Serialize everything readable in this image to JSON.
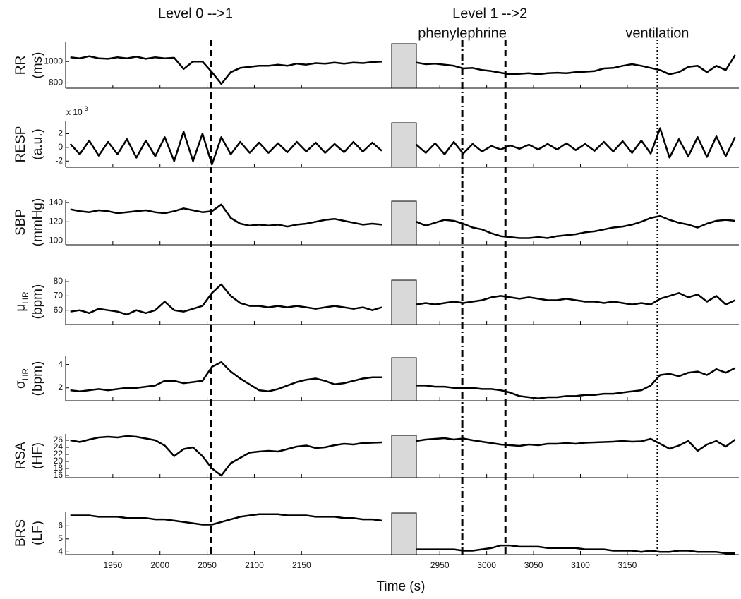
{
  "chart_data": {
    "type": "line",
    "xlabel": "Time (s)",
    "color": "#000000",
    "segments": [
      {
        "xlim": [
          1900,
          2244
        ],
        "xticks": [
          1950,
          2000,
          2050,
          2100,
          2150
        ]
      },
      {
        "xlim": [
          2925,
          3269
        ],
        "xticks": [
          2950,
          3000,
          3050,
          3100,
          3150
        ]
      }
    ],
    "x": [
      [
        1905,
        1915,
        1925,
        1935,
        1945,
        1955,
        1965,
        1975,
        1985,
        1995,
        2005,
        2015,
        2025,
        2035,
        2045,
        2055,
        2065,
        2075,
        2085,
        2095,
        2105,
        2115,
        2125,
        2135,
        2145,
        2155,
        2165,
        2175,
        2185,
        2195,
        2205,
        2215,
        2225,
        2235
      ],
      [
        2925,
        2935,
        2945,
        2955,
        2965,
        2975,
        2985,
        2995,
        3005,
        3015,
        3025,
        3035,
        3045,
        3055,
        3065,
        3075,
        3085,
        3095,
        3105,
        3115,
        3125,
        3135,
        3145,
        3155,
        3165,
        3175,
        3185,
        3195,
        3205,
        3215,
        3225,
        3235,
        3245,
        3255,
        3265
      ]
    ],
    "events": [
      {
        "x": 2054,
        "style": "dashed",
        "label": "Level 0 -->1"
      },
      {
        "x": 2974,
        "style": "dashdot",
        "label": "phenylephrine"
      },
      {
        "x": 3020,
        "style": "dashed",
        "label": "Level 1 -->2"
      },
      {
        "x": 3182,
        "style": "dotted",
        "label": "ventilation"
      }
    ],
    "panels": [
      {
        "ylabel": "RR",
        "unit": "(ms)",
        "ylim": [
          750,
          1180
        ],
        "yticks": [
          800,
          1000
        ],
        "values": [
          [
            1040,
            1030,
            1050,
            1030,
            1025,
            1040,
            1030,
            1045,
            1025,
            1040,
            1030,
            1035,
            930,
            1000,
            1000,
            900,
            790,
            900,
            940,
            950,
            960,
            960,
            970,
            960,
            980,
            970,
            985,
            980,
            990,
            980,
            990,
            985,
            995,
            1000
          ],
          [
            990,
            975,
            980,
            970,
            960,
            935,
            940,
            920,
            910,
            895,
            880,
            885,
            890,
            880,
            890,
            895,
            890,
            900,
            905,
            910,
            935,
            940,
            960,
            975,
            960,
            940,
            920,
            880,
            900,
            950,
            960,
            900,
            960,
            920,
            1060
          ]
        ]
      },
      {
        "ylabel": "RESP",
        "unit": "(a.u.)",
        "multiplier": "x 10",
        "multiplier_exp": "-3",
        "ylim": [
          -2.9,
          3.8
        ],
        "yticks": [
          -2,
          0,
          2
        ],
        "values": [
          [
            0.5,
            -1,
            1,
            -1.2,
            0.8,
            -1,
            1.2,
            -1.5,
            1,
            -1.3,
            1.5,
            -2,
            2.3,
            -2,
            2,
            -2.5,
            1.5,
            -1,
            0.8,
            -0.8,
            0.7,
            -0.8,
            0.6,
            -0.7,
            0.8,
            -0.6,
            0.7,
            -0.8,
            0.5,
            -0.7,
            0.8,
            -0.6,
            0.7,
            -0.5
          ],
          [
            0.4,
            -0.8,
            0.6,
            -1,
            0.8,
            -0.9,
            0.5,
            -0.6,
            0.2,
            -0.3,
            0.3,
            -0.2,
            0.4,
            -0.3,
            0.5,
            -0.3,
            0.6,
            -0.4,
            0.5,
            -0.5,
            0.8,
            -0.6,
            0.9,
            -0.8,
            1,
            -0.9,
            2.8,
            -1.5,
            1.2,
            -1.3,
            1.5,
            -1.4,
            1.6,
            -1.3,
            1.5
          ]
        ]
      },
      {
        "ylabel": "SBP",
        "unit": "(mmHg)",
        "ylim": [
          96,
          143
        ],
        "yticks": [
          100,
          120,
          140
        ],
        "values": [
          [
            133,
            131,
            130,
            132,
            131,
            129,
            130,
            131,
            132,
            130,
            129,
            131,
            134,
            132,
            130,
            131,
            138,
            124,
            118,
            116,
            117,
            116,
            117,
            115,
            117,
            118,
            120,
            122,
            123,
            121,
            119,
            117,
            118,
            117
          ],
          [
            120,
            116,
            119,
            122,
            121,
            118,
            114,
            112,
            108,
            105,
            104,
            103,
            103,
            104,
            103,
            105,
            106,
            107,
            109,
            110,
            112,
            114,
            115,
            117,
            120,
            124,
            126,
            122,
            119,
            117,
            114,
            118,
            121,
            122,
            121
          ]
        ]
      },
      {
        "ylabel": "μ",
        "ylabel_sub": "HR",
        "unit": "(bpm)",
        "ylim": [
          50,
          82
        ],
        "yticks": [
          60,
          70,
          80
        ],
        "values": [
          [
            59,
            60,
            58,
            61,
            60,
            59,
            57,
            60,
            58,
            60,
            66,
            60,
            59,
            61,
            63,
            72,
            78,
            70,
            65,
            63,
            63,
            62,
            63,
            62,
            63,
            62,
            61,
            62,
            63,
            62,
            61,
            62,
            60,
            62
          ],
          [
            64,
            65,
            64,
            65,
            66,
            65,
            66,
            67,
            69,
            70,
            69,
            68,
            69,
            68,
            67,
            67,
            68,
            67,
            66,
            66,
            65,
            66,
            65,
            64,
            65,
            64,
            68,
            70,
            72,
            69,
            71,
            66,
            70,
            64,
            67
          ]
        ]
      },
      {
        "ylabel": "σ",
        "ylabel_sub": "HR",
        "unit": "(bpm)",
        "ylim": [
          0.9,
          4.7
        ],
        "yticks": [
          2,
          4
        ],
        "values": [
          [
            1.8,
            1.7,
            1.8,
            1.9,
            1.8,
            1.9,
            2.0,
            2.0,
            2.1,
            2.2,
            2.6,
            2.6,
            2.4,
            2.5,
            2.6,
            3.8,
            4.2,
            3.4,
            2.8,
            2.3,
            1.8,
            1.7,
            1.9,
            2.2,
            2.5,
            2.7,
            2.8,
            2.6,
            2.3,
            2.4,
            2.6,
            2.8,
            2.9,
            2.9
          ],
          [
            2.2,
            2.2,
            2.1,
            2.1,
            2.0,
            2.0,
            2.0,
            1.9,
            1.9,
            1.8,
            1.6,
            1.3,
            1.2,
            1.1,
            1.2,
            1.2,
            1.3,
            1.3,
            1.4,
            1.4,
            1.5,
            1.5,
            1.6,
            1.7,
            1.8,
            2.2,
            3.1,
            3.2,
            3.0,
            3.3,
            3.4,
            3.1,
            3.6,
            3.3,
            3.7
          ]
        ]
      },
      {
        "ylabel": "RSA",
        "unit": "(HF)",
        "ylim": [
          15.4,
          27.8
        ],
        "yticks": [
          16,
          18,
          20,
          22,
          24,
          26
        ],
        "values": [
          [
            26.0,
            25.5,
            26.2,
            26.8,
            27.0,
            26.8,
            27.2,
            27.0,
            26.5,
            26.0,
            24.5,
            21.5,
            23.5,
            24.0,
            21.5,
            18.0,
            16.0,
            19.5,
            21.0,
            22.5,
            22.8,
            23.0,
            22.8,
            23.5,
            24.2,
            24.5,
            23.8,
            24.0,
            24.6,
            25.0,
            24.8,
            25.2,
            25.3,
            25.4
          ],
          [
            25.8,
            26.2,
            26.4,
            26.6,
            26.2,
            26.5,
            26.0,
            25.6,
            25.2,
            24.8,
            24.6,
            24.4,
            24.8,
            24.6,
            25.0,
            25.0,
            25.2,
            25.0,
            25.3,
            25.4,
            25.5,
            25.6,
            25.8,
            25.6,
            25.7,
            26.4,
            25.0,
            23.6,
            24.5,
            25.8,
            23.0,
            24.8,
            25.8,
            24.2,
            26.2
          ]
        ]
      },
      {
        "ylabel": "BRS",
        "unit": "(LF)",
        "ylim": [
          3.8,
          7.1
        ],
        "yticks": [
          4,
          5,
          6
        ],
        "values": [
          [
            6.8,
            6.8,
            6.8,
            6.7,
            6.7,
            6.7,
            6.6,
            6.6,
            6.6,
            6.5,
            6.5,
            6.4,
            6.3,
            6.2,
            6.1,
            6.1,
            6.3,
            6.5,
            6.7,
            6.8,
            6.9,
            6.9,
            6.9,
            6.8,
            6.8,
            6.8,
            6.7,
            6.7,
            6.7,
            6.6,
            6.6,
            6.5,
            6.5,
            6.4
          ],
          [
            4.2,
            4.2,
            4.2,
            4.2,
            4.2,
            4.1,
            4.1,
            4.2,
            4.3,
            4.5,
            4.5,
            4.4,
            4.4,
            4.4,
            4.3,
            4.3,
            4.3,
            4.3,
            4.2,
            4.2,
            4.2,
            4.1,
            4.1,
            4.1,
            4.0,
            4.1,
            4.0,
            4.0,
            4.1,
            4.1,
            4.0,
            4.0,
            4.0,
            3.9,
            3.9
          ]
        ]
      }
    ]
  }
}
